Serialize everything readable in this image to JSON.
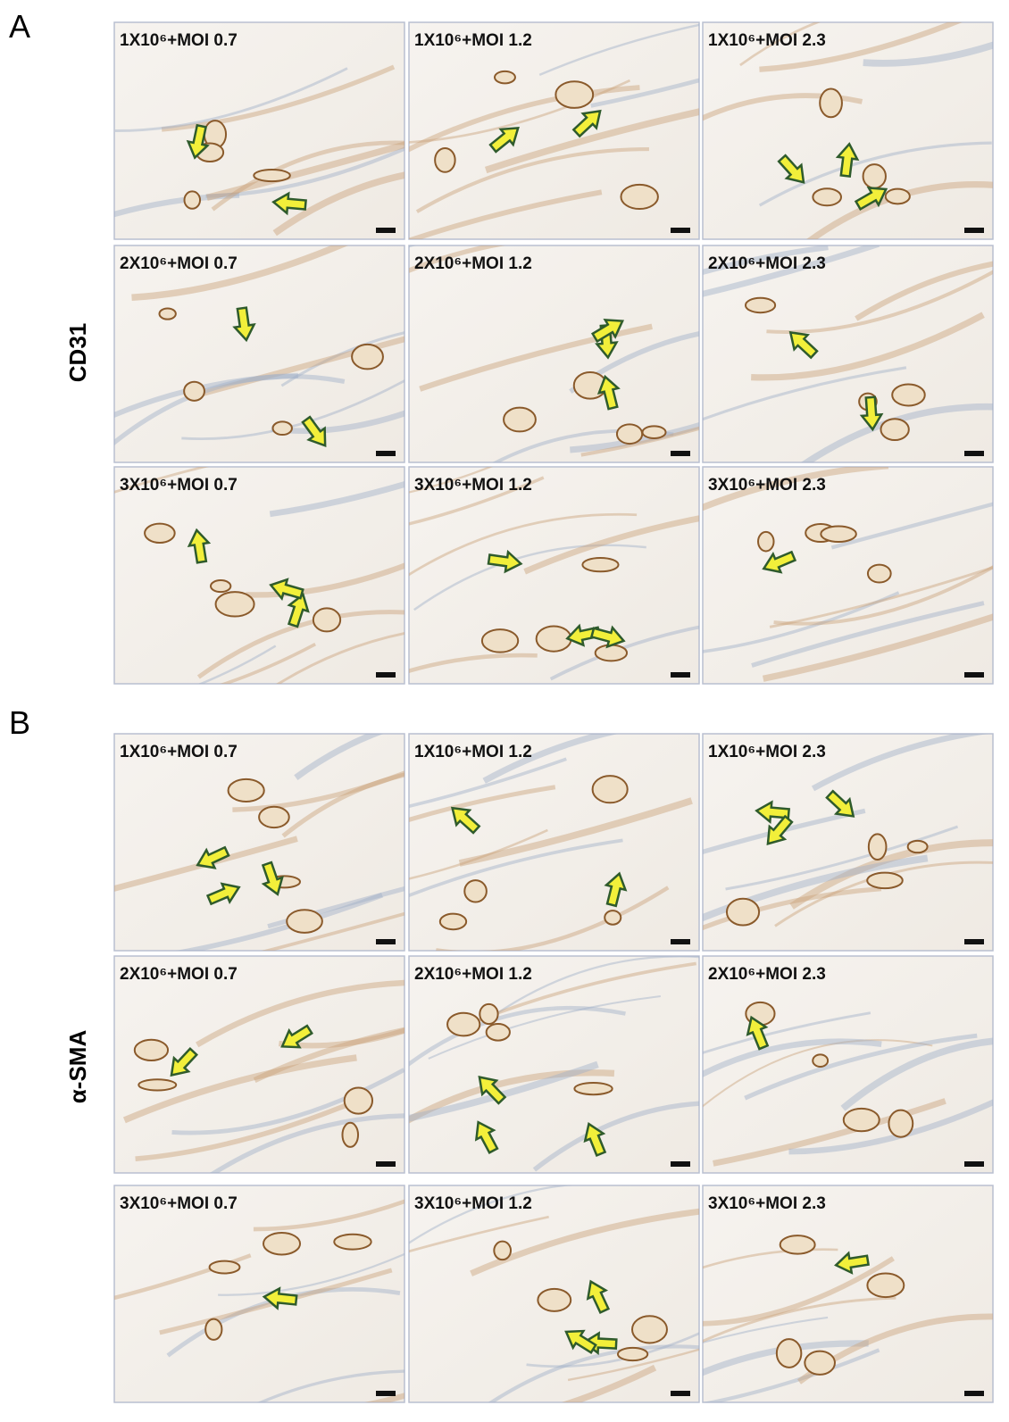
{
  "figure": {
    "sections": [
      {
        "letter": "A",
        "stain": "CD31",
        "images": [
          "1X10⁶+MOI 0.7",
          "1X10⁶+MOI 1.2",
          "1X10⁶+MOI 2.3",
          "2X10⁶+MOI 0.7",
          "2X10⁶+MOI 1.2",
          "2X10⁶+MOI 2.3",
          "3X10⁶+MOI 0.7",
          "3X10⁶+MOI 1.2",
          "3X10⁶+MOI 2.3"
        ]
      },
      {
        "letter": "B",
        "stain": "α-SMA",
        "images": [
          "1X10⁶+MOI 0.7",
          "1X10⁶+MOI 1.2",
          "1X10⁶+MOI 2.3",
          "2X10⁶+MOI 0.7",
          "2X10⁶+MOI 1.2",
          "2X10⁶+MOI 2.3",
          "3X10⁶+MOI 0.7",
          "3X10⁶+MOI 1.2",
          "3X10⁶+MOI 2.3"
        ]
      }
    ]
  }
}
